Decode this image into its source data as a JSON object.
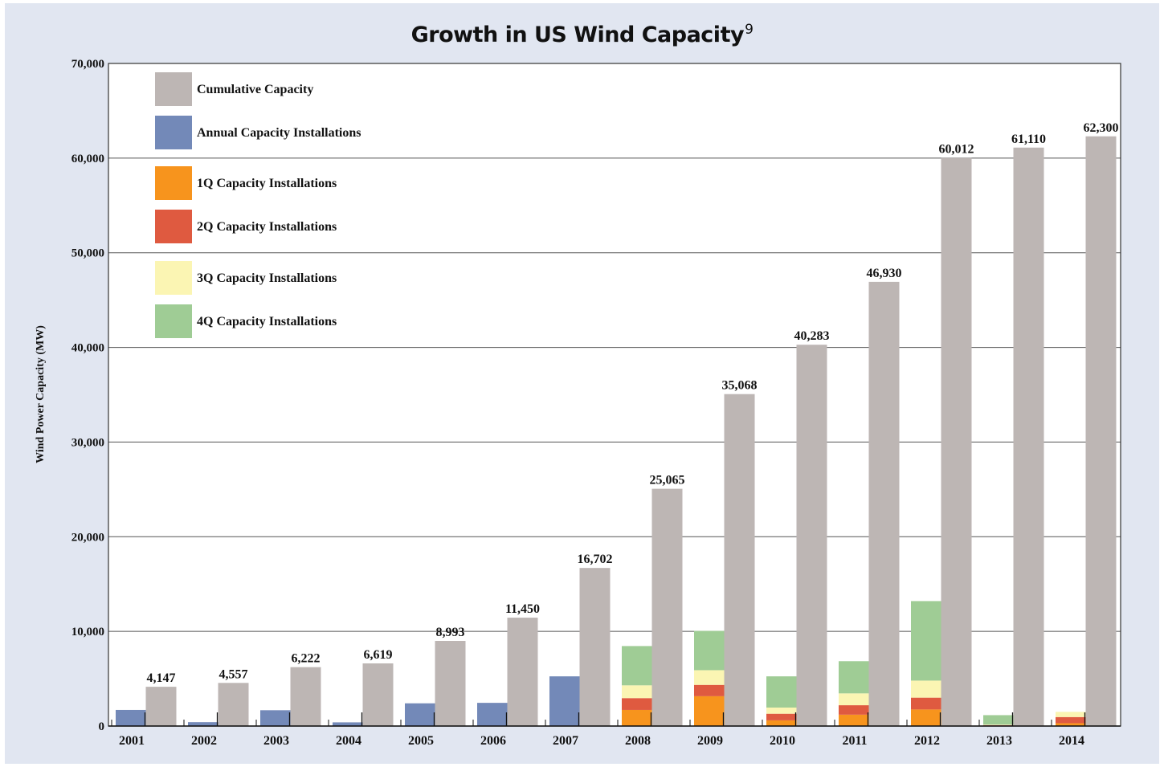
{
  "chart_data": {
    "type": "bar",
    "title": "Growth in US Wind Capacity",
    "title_footnote": "9",
    "ylabel": "Wind Power Capacity (MW)",
    "xlabel": "",
    "ylim": [
      0,
      70000
    ],
    "yticks": [
      0,
      10000,
      20000,
      30000,
      40000,
      50000,
      60000,
      70000
    ],
    "ytick_labels": [
      "0",
      "10,000",
      "20,000",
      "30,000",
      "40,000",
      "50,000",
      "60,000",
      "70,000"
    ],
    "grid": true,
    "legend_position": "top-left",
    "categories": [
      "2001",
      "2002",
      "2003",
      "2004",
      "2005",
      "2006",
      "2007",
      "2008",
      "2009",
      "2010",
      "2011",
      "2012",
      "2013",
      "2014"
    ],
    "series": [
      {
        "name": "Cumulative Capacity",
        "color": "#bdb6b4",
        "values": [
          4147,
          4557,
          6222,
          6619,
          8993,
          11450,
          16702,
          25065,
          35068,
          40283,
          46930,
          60012,
          61110,
          62300
        ],
        "labels": [
          "4,147",
          "4,557",
          "6,222",
          "6,619",
          "8,993",
          "11,450",
          "16,702",
          "25,065",
          "35,068",
          "40,283",
          "46,930",
          "60,012",
          "61,110",
          "62,300"
        ]
      },
      {
        "name": "Annual Capacity Installations",
        "color": "#7389b8",
        "values": [
          1700,
          410,
          1670,
          390,
          2400,
          2450,
          5250,
          null,
          null,
          null,
          null,
          null,
          null,
          null
        ]
      },
      {
        "name": "1Q Capacity Installations",
        "color": "#f7941d",
        "values": [
          null,
          null,
          null,
          null,
          null,
          null,
          null,
          1700,
          3150,
          600,
          1200,
          1750,
          50,
          300
        ]
      },
      {
        "name": "2Q Capacity Installations",
        "color": "#df5a40",
        "values": [
          null,
          null,
          null,
          null,
          null,
          null,
          null,
          1250,
          1200,
          700,
          1000,
          1250,
          50,
          650
        ]
      },
      {
        "name": "3Q Capacity Installations",
        "color": "#fbf5b3",
        "values": [
          null,
          null,
          null,
          null,
          null,
          null,
          null,
          1350,
          1550,
          650,
          1250,
          1800,
          50,
          550
        ]
      },
      {
        "name": "4Q Capacity Installations",
        "color": "#9fcc95",
        "values": [
          null,
          null,
          null,
          null,
          null,
          null,
          null,
          4150,
          4150,
          3300,
          3400,
          8400,
          1000,
          0
        ]
      }
    ]
  }
}
